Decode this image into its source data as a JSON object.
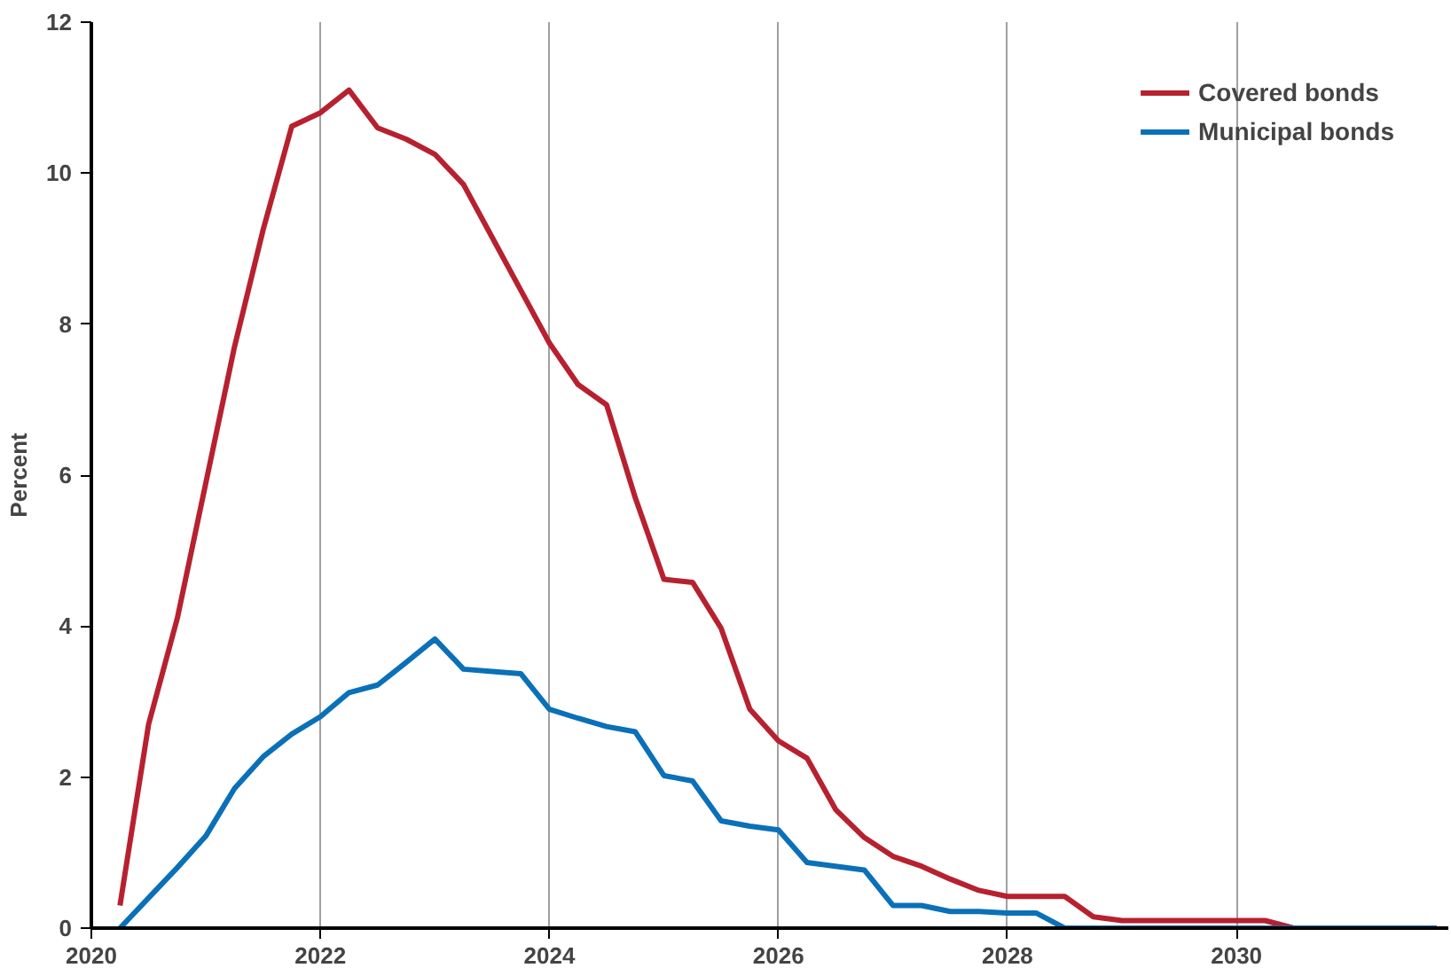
{
  "chart_data": {
    "type": "line",
    "ylabel": "Percent",
    "x": [
      2020.25,
      2020.5,
      2020.75,
      2021,
      2021.25,
      2021.5,
      2021.75,
      2022,
      2022.25,
      2022.5,
      2022.75,
      2023,
      2023.25,
      2023.5,
      2023.75,
      2024,
      2024.25,
      2024.5,
      2024.75,
      2025,
      2025.25,
      2025.5,
      2025.75,
      2026,
      2026.25,
      2026.5,
      2026.75,
      2027,
      2027.25,
      2027.5,
      2027.75,
      2028,
      2028.25,
      2028.5,
      2028.75,
      2029,
      2029.25,
      2029.5,
      2029.75,
      2030,
      2030.25,
      2030.5,
      2030.75,
      2031,
      2031.25,
      2031.5,
      2031.75
    ],
    "series": [
      {
        "name": "Covered bonds",
        "color": "#b7212f",
        "values": [
          0.3,
          2.7,
          4.1,
          5.9,
          7.7,
          9.25,
          10.62,
          10.8,
          11.1,
          10.6,
          10.45,
          10.25,
          9.85,
          9.15,
          8.45,
          7.75,
          7.2,
          6.93,
          5.7,
          4.62,
          4.58,
          3.97,
          2.9,
          2.48,
          2.25,
          1.57,
          1.2,
          0.95,
          0.82,
          0.65,
          0.5,
          0.42,
          0.42,
          0.42,
          0.15,
          0.1,
          0.1,
          0.1,
          0.1,
          0.1,
          0.1,
          0,
          0,
          null,
          null,
          null,
          null
        ]
      },
      {
        "name": "Municipal bonds",
        "color": "#0a70b8",
        "values": [
          0,
          0.4,
          0.8,
          1.22,
          1.85,
          2.27,
          2.57,
          2.8,
          3.12,
          3.22,
          3.52,
          3.83,
          3.43,
          3.4,
          3.37,
          2.9,
          2.78,
          2.67,
          2.6,
          2.02,
          1.95,
          1.42,
          1.35,
          1.3,
          0.87,
          0.82,
          0.77,
          0.3,
          0.3,
          0.22,
          0.22,
          0.2,
          0.2,
          0,
          0,
          0,
          0,
          0,
          0,
          0,
          0,
          0,
          0,
          0,
          0,
          0,
          0
        ]
      }
    ],
    "xlim": [
      2020,
      2031.85
    ],
    "xticks": [
      2020,
      2022,
      2024,
      2026,
      2028,
      2030
    ],
    "ylim": [
      0,
      12
    ],
    "yticks": [
      0,
      2,
      4,
      6,
      8,
      10,
      12
    ],
    "grid": "x",
    "legend": "top right",
    "line_style": "solid"
  }
}
